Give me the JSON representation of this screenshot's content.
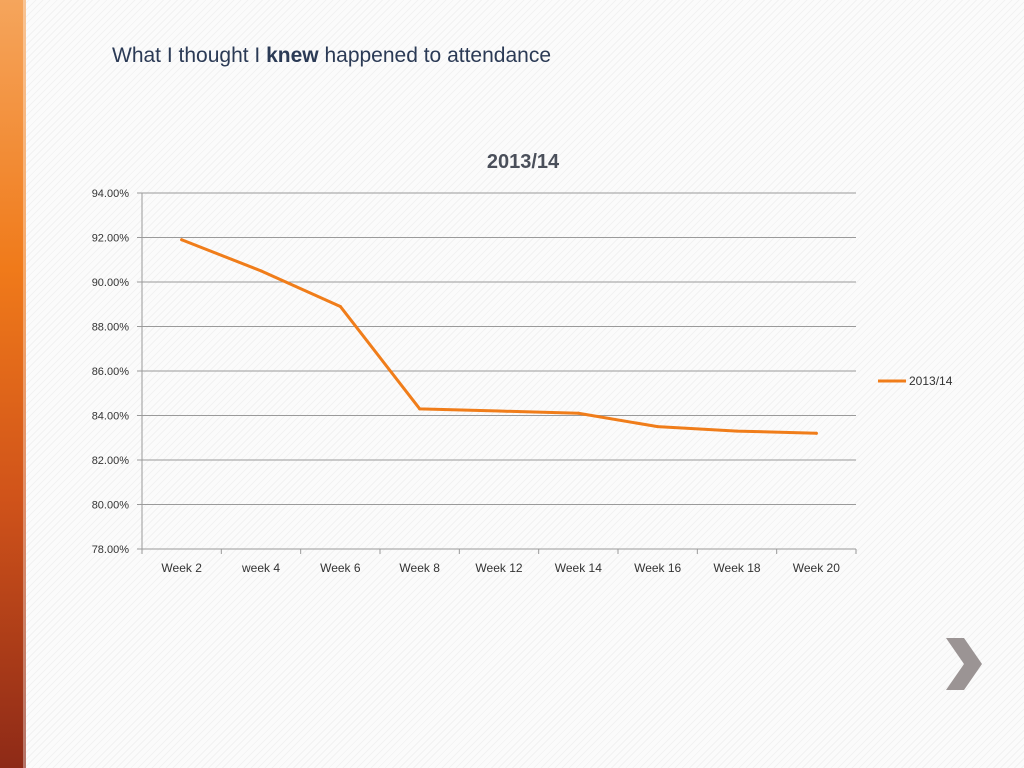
{
  "slide": {
    "title_before": "What I thought I ",
    "title_bold": "knew",
    "title_after": " happened to attendance",
    "accent_color": "#f07a1a",
    "next_icon": "chevron-right-icon"
  },
  "chart_data": {
    "type": "line",
    "title": "2013/14",
    "xlabel": "",
    "ylabel": "",
    "categories": [
      "Week 2",
      "week 4",
      "Week 6",
      "Week 8",
      "Week 12",
      "Week 14",
      "Week 16",
      "Week 18",
      "Week 20"
    ],
    "series": [
      {
        "name": "2013/14",
        "color": "#f07d1a",
        "values": [
          91.9,
          90.5,
          88.9,
          84.3,
          84.2,
          84.1,
          83.5,
          83.3,
          83.2
        ]
      }
    ],
    "ylim": [
      78,
      94
    ],
    "yticks": [
      78,
      80,
      82,
      84,
      86,
      88,
      90,
      92,
      94
    ],
    "ytick_labels": [
      "78.00%",
      "80.00%",
      "82.00%",
      "84.00%",
      "86.00%",
      "88.00%",
      "90.00%",
      "92.00%",
      "94.00%"
    ],
    "grid": true,
    "legend_position": "right"
  }
}
